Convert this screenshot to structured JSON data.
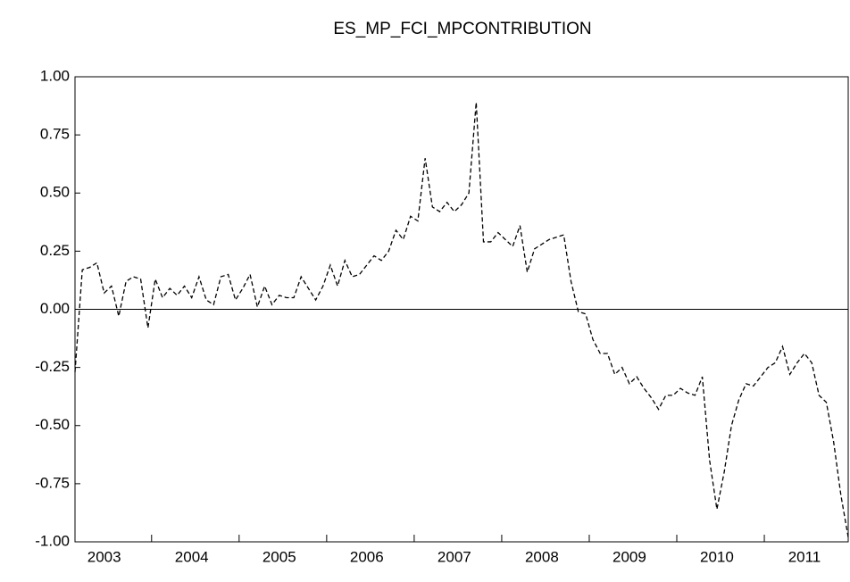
{
  "chart_data": {
    "type": "line",
    "title": "ES_MP_FCI_MPCONTRIBUTION",
    "categories": [
      null,
      null,
      null,
      null,
      "2003",
      null,
      null,
      null,
      null,
      null,
      null,
      null,
      null,
      null,
      null,
      null,
      "2004",
      null,
      null,
      null,
      null,
      null,
      null,
      null,
      null,
      null,
      null,
      null,
      "2005",
      null,
      null,
      null,
      null,
      null,
      null,
      null,
      null,
      null,
      null,
      null,
      "2006",
      null,
      null,
      null,
      null,
      null,
      null,
      null,
      null,
      null,
      null,
      null,
      "2007",
      null,
      null,
      null,
      null,
      null,
      null,
      null,
      null,
      null,
      null,
      null,
      "2008",
      null,
      null,
      null,
      null,
      null,
      null,
      null,
      null,
      null,
      null,
      null,
      "2009",
      null,
      null,
      null,
      null,
      null,
      null,
      null,
      null,
      null,
      null,
      null,
      "2010",
      null,
      null,
      null,
      null,
      null,
      null,
      null,
      null,
      null,
      null,
      null,
      "2011",
      null,
      null,
      null,
      null,
      null,
      null
    ],
    "series": [
      {
        "name": "ES_MP_FCI_MPCONTRIBUTION",
        "color": "#000000",
        "dash": true,
        "values": [
          -0.27,
          0.17,
          0.18,
          0.2,
          0.07,
          0.1,
          -0.03,
          0.12,
          0.14,
          0.13,
          -0.08,
          0.13,
          0.05,
          0.09,
          0.06,
          0.1,
          0.05,
          0.14,
          0.04,
          0.02,
          0.14,
          0.15,
          0.04,
          0.09,
          0.15,
          0.01,
          0.1,
          0.02,
          0.06,
          0.05,
          0.05,
          0.14,
          0.09,
          0.04,
          0.1,
          0.19,
          0.1,
          0.21,
          0.14,
          0.15,
          0.19,
          0.23,
          0.21,
          0.25,
          0.34,
          0.3,
          0.4,
          0.38,
          0.65,
          0.44,
          0.42,
          0.46,
          0.42,
          0.45,
          0.5,
          0.89,
          0.29,
          0.29,
          0.33,
          0.3,
          0.27,
          0.36,
          0.16,
          0.26,
          0.28,
          0.3,
          0.31,
          0.32,
          0.12,
          -0.01,
          -0.02,
          -0.13,
          -0.19,
          -0.19,
          -0.28,
          -0.25,
          -0.32,
          -0.29,
          -0.34,
          -0.38,
          -0.43,
          -0.37,
          -0.37,
          -0.34,
          -0.36,
          -0.37,
          -0.29,
          -0.65,
          -0.86,
          -0.7,
          -0.5,
          -0.39,
          -0.32,
          -0.33,
          -0.29,
          -0.25,
          -0.23,
          -0.16,
          -0.28,
          -0.23,
          -0.19,
          -0.23,
          -0.37,
          -0.4,
          -0.57,
          -0.8,
          -0.98
        ]
      }
    ],
    "ylim": [
      -1,
      1
    ],
    "yticks": [
      {
        "value": -1,
        "label": "-1.00"
      },
      {
        "value": -0.75,
        "label": "-0.75"
      },
      {
        "value": -0.5,
        "label": "-0.50"
      },
      {
        "value": -0.25,
        "label": "-0.25"
      },
      {
        "value": 0,
        "label": "0.00"
      },
      {
        "value": 0.25,
        "label": "0.25"
      },
      {
        "value": 0.5,
        "label": "0.50"
      },
      {
        "value": 0.75,
        "label": "0.75"
      },
      {
        "value": 1,
        "label": "1.00"
      }
    ],
    "zeroline": true
  }
}
